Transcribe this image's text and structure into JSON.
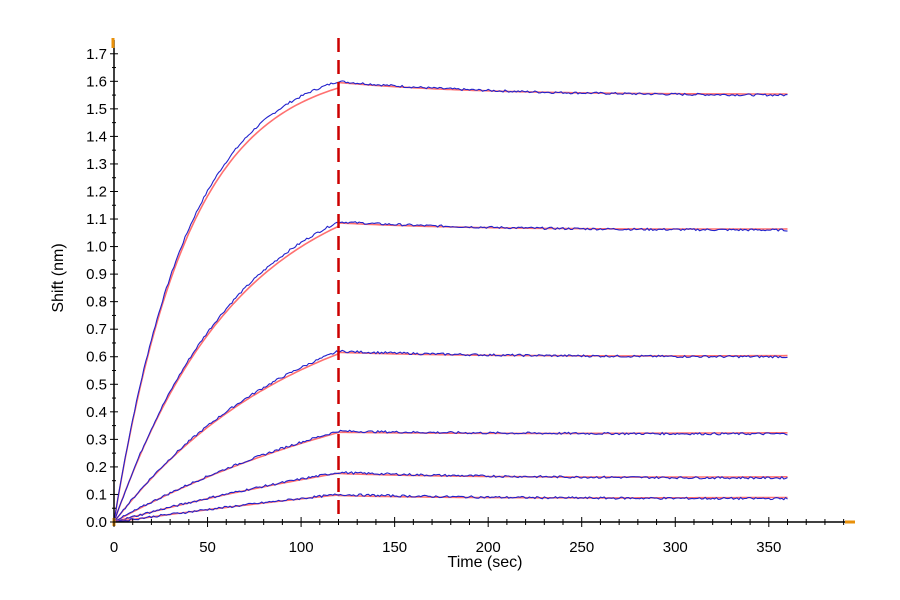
{
  "chart_data": {
    "type": "line",
    "title": "",
    "xlabel": "Time (sec)",
    "ylabel": "Shift (nm)",
    "xlim": [
      0,
      395
    ],
    "ylim": [
      0,
      1.75
    ],
    "xticks": [
      0,
      50,
      100,
      150,
      200,
      250,
      300,
      350
    ],
    "yticks": [
      0.0,
      0.1,
      0.2,
      0.3,
      0.4,
      0.5,
      0.6,
      0.7,
      0.8,
      0.9,
      1.0,
      1.1,
      1.2,
      1.3,
      1.4,
      1.5,
      1.6,
      1.7
    ],
    "ytick_labels": [
      "0.0",
      "0.1",
      "0.2",
      "0.3",
      "0.4",
      "0.5",
      "0.6",
      "0.7",
      "0.8",
      "0.9",
      "1.0",
      "1.1",
      "1.2",
      "1.3",
      "1.4",
      "1.5",
      "1.6",
      "1.7"
    ],
    "grid": false,
    "legend": "none",
    "association_end": 120,
    "dissociation_end": 360,
    "colors": {
      "measured": "#2222cc",
      "fit": "#ff7070",
      "marker_line": "#cc0000",
      "axis": "#000000",
      "axis_end_marker": "#e8900a"
    },
    "series": [
      {
        "peak": 1.6,
        "curvature": 3.0,
        "end": 1.55
      },
      {
        "peak": 1.09,
        "curvature": 1.8,
        "end": 1.06
      },
      {
        "peak": 0.62,
        "curvature": 1.2,
        "end": 0.6
      },
      {
        "peak": 0.33,
        "curvature": 0.7,
        "end": 0.32
      },
      {
        "peak": 0.18,
        "curvature": 0.5,
        "end": 0.16
      },
      {
        "peak": 0.1,
        "curvature": 0.3,
        "end": 0.085
      }
    ]
  }
}
